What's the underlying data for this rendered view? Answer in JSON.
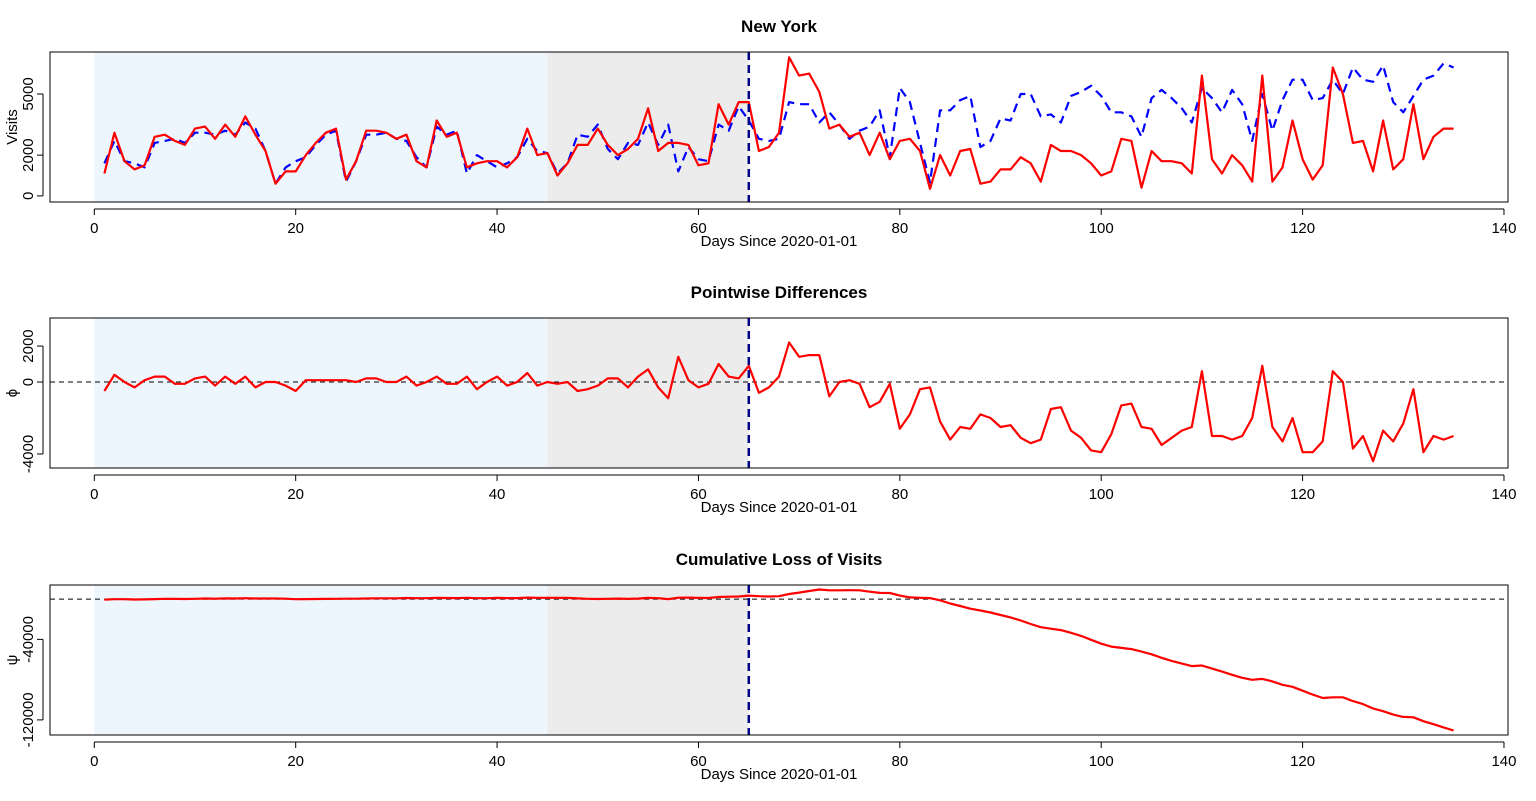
{
  "chart_data": [
    {
      "type": "line",
      "title": "New York",
      "xlabel": "Days Since 2020-01-01",
      "ylabel": "Visits",
      "x": [
        1,
        2,
        3,
        4,
        5,
        6,
        7,
        8,
        9,
        10,
        11,
        12,
        13,
        14,
        15,
        16,
        17,
        18,
        19,
        20,
        21,
        22,
        23,
        24,
        25,
        26,
        27,
        28,
        29,
        30,
        31,
        32,
        33,
        34,
        35,
        36,
        37,
        38,
        39,
        40,
        41,
        42,
        43,
        44,
        45,
        46,
        47,
        48,
        49,
        50,
        51,
        52,
        53,
        54,
        55,
        56,
        57,
        58,
        59,
        60,
        61,
        62,
        63,
        64,
        65,
        66,
        67,
        68,
        69,
        70,
        71,
        72,
        73,
        74,
        75,
        76,
        77,
        78,
        79,
        80,
        81,
        82,
        83,
        84,
        85,
        86,
        87,
        88,
        89,
        90,
        91,
        92,
        93,
        94,
        95,
        96,
        97,
        98,
        99,
        100,
        101,
        102,
        103,
        104,
        105,
        106,
        107,
        108,
        109,
        110,
        111,
        112,
        113,
        114,
        115,
        116,
        117,
        118,
        119,
        120,
        121,
        122,
        123,
        124,
        125,
        126,
        127,
        128,
        129,
        130,
        131,
        132,
        133,
        134,
        135
      ],
      "series": [
        {
          "color": "#0000ff",
          "dashed": true,
          "values": [
            1600,
            2700,
            1700,
            1600,
            1400,
            2600,
            2700,
            2800,
            2600,
            3100,
            3100,
            3000,
            3200,
            3000,
            3600,
            3300,
            2200,
            600,
            1400,
            1700,
            1900,
            2500,
            3000,
            3200,
            700,
            1700,
            3000,
            3000,
            3100,
            2800,
            2700,
            1900,
            1400,
            3400,
            3000,
            3200,
            1100,
            2000,
            1700,
            1400,
            1600,
            1900,
            2800,
            2200,
            2100,
            1100,
            1600,
            3000,
            2900,
            3500,
            2300,
            1800,
            2600,
            2500,
            3600,
            2500,
            3500,
            1200,
            2400,
            1800,
            1700,
            3500,
            3200,
            4400,
            3700,
            2800,
            2700,
            2800,
            4600,
            4500,
            4500,
            3600,
            4100,
            3500,
            2800,
            3200,
            3400,
            4200,
            1900,
            5300,
            4600,
            2600,
            650,
            4200,
            4200,
            4700,
            4900,
            2400,
            2700,
            3800,
            3700,
            5000,
            5000,
            3900,
            4000,
            3600,
            4900,
            5100,
            5400,
            4900,
            4100,
            4100,
            3900,
            2900,
            4800,
            5200,
            4800,
            4300,
            3600,
            5300,
            4800,
            4100,
            5200,
            4500,
            2700,
            5000,
            3200,
            4700,
            5700,
            5700,
            4700,
            4800,
            5700,
            5000,
            6300,
            5700,
            5600,
            6400,
            4600,
            4100,
            4900,
            5700,
            5900,
            6500,
            6300
          ]
        },
        {
          "color": "#ff0000",
          "values": [
            1100,
            3100,
            1700,
            1300,
            1500,
            2900,
            3000,
            2700,
            2500,
            3300,
            3400,
            2800,
            3500,
            2900,
            3900,
            3000,
            2200,
            600,
            1200,
            1200,
            2000,
            2600,
            3100,
            3300,
            800,
            1700,
            3200,
            3200,
            3100,
            2800,
            3000,
            1700,
            1400,
            3700,
            2900,
            3100,
            1400,
            1600,
            1700,
            1700,
            1400,
            1900,
            3300,
            2000,
            2100,
            1000,
            1600,
            2500,
            2500,
            3300,
            2500,
            2000,
            2300,
            2800,
            4300,
            2200,
            2600,
            2600,
            2500,
            1500,
            1600,
            4500,
            3500,
            4600,
            4600,
            2200,
            2400,
            3100,
            6800,
            5900,
            6000,
            5100,
            3300,
            3500,
            2900,
            3100,
            2000,
            3100,
            1800,
            2700,
            2800,
            2200,
            350,
            2000,
            1000,
            2200,
            2300,
            600,
            700,
            1300,
            1300,
            1900,
            1600,
            700,
            2500,
            2200,
            2200,
            2000,
            1600,
            1000,
            1200,
            2800,
            2700,
            400,
            2200,
            1700,
            1700,
            1600,
            1100,
            5900,
            1800,
            1100,
            2000,
            1500,
            700,
            5900,
            700,
            1400,
            3700,
            1800,
            800,
            1500,
            6300,
            5000,
            2600,
            2700,
            1200,
            3700,
            1300,
            1800,
            4500,
            1800,
            2900,
            3300,
            3300
          ]
        }
      ],
      "xlim": [
        -4.4,
        140.4
      ],
      "xticks": [
        0,
        20,
        40,
        60,
        80,
        100,
        120,
        140
      ],
      "ylim": [
        -300,
        7060
      ],
      "yticks": [
        0,
        2000,
        5000
      ],
      "shade": [
        {
          "from": 0,
          "to": 45,
          "color": "#eef6fd"
        },
        {
          "from": 45,
          "to": 65,
          "color": "#ececec"
        }
      ],
      "vline": {
        "at": 65,
        "color": "#00008b"
      }
    },
    {
      "type": "line",
      "title": "Pointwise Differences",
      "xlabel": "Days Since 2020-01-01",
      "ylabel": "ϕ",
      "x": [
        1,
        2,
        3,
        4,
        5,
        6,
        7,
        8,
        9,
        10,
        11,
        12,
        13,
        14,
        15,
        16,
        17,
        18,
        19,
        20,
        21,
        22,
        23,
        24,
        25,
        26,
        27,
        28,
        29,
        30,
        31,
        32,
        33,
        34,
        35,
        36,
        37,
        38,
        39,
        40,
        41,
        42,
        43,
        44,
        45,
        46,
        47,
        48,
        49,
        50,
        51,
        52,
        53,
        54,
        55,
        56,
        57,
        58,
        59,
        60,
        61,
        62,
        63,
        64,
        65,
        66,
        67,
        68,
        69,
        70,
        71,
        72,
        73,
        74,
        75,
        76,
        77,
        78,
        79,
        80,
        81,
        82,
        83,
        84,
        85,
        86,
        87,
        88,
        89,
        90,
        91,
        92,
        93,
        94,
        95,
        96,
        97,
        98,
        99,
        100,
        101,
        102,
        103,
        104,
        105,
        106,
        107,
        108,
        109,
        110,
        111,
        112,
        113,
        114,
        115,
        116,
        117,
        118,
        119,
        120,
        121,
        122,
        123,
        124,
        125,
        126,
        127,
        128,
        129,
        130,
        131,
        132,
        133,
        134,
        135
      ],
      "series": [
        {
          "color": "#ff0000",
          "values": [
            -500,
            400,
            0,
            -300,
            100,
            300,
            300,
            -100,
            -100,
            200,
            300,
            -200,
            300,
            -100,
            300,
            -300,
            0,
            0,
            -200,
            -500,
            100,
            100,
            100,
            100,
            100,
            0,
            200,
            200,
            0,
            0,
            300,
            -200,
            0,
            300,
            -100,
            -100,
            300,
            -400,
            0,
            300,
            -200,
            0,
            500,
            -200,
            0,
            -100,
            0,
            -500,
            -400,
            -200,
            200,
            200,
            -300,
            300,
            700,
            -300,
            -900,
            1400,
            100,
            -300,
            -100,
            1000,
            300,
            200,
            900,
            -600,
            -300,
            300,
            2200,
            1400,
            1500,
            1500,
            -800,
            0,
            100,
            -100,
            -1400,
            -1100,
            -100,
            -2600,
            -1800,
            -400,
            -300,
            -2200,
            -3200,
            -2500,
            -2600,
            -1800,
            -2000,
            -2500,
            -2400,
            -3100,
            -3400,
            -3200,
            -1500,
            -1400,
            -2700,
            -3100,
            -3800,
            -3900,
            -2900,
            -1300,
            -1200,
            -2500,
            -2600,
            -3500,
            -3100,
            -2700,
            -2500,
            600,
            -3000,
            -3000,
            -3200,
            -3000,
            -2000,
            900,
            -2500,
            -3300,
            -2000,
            -3900,
            -3900,
            -3300,
            600,
            0,
            -3700,
            -3000,
            -4400,
            -2700,
            -3300,
            -2300,
            -400,
            -3900,
            -3000,
            -3200,
            -3000
          ]
        }
      ],
      "xlim": [
        -4.4,
        140.4
      ],
      "xticks": [
        0,
        20,
        40,
        60,
        80,
        100,
        120,
        140
      ],
      "ylim": [
        -4780,
        3560
      ],
      "yticks": [
        -4000,
        0,
        2000
      ],
      "shade": [
        {
          "from": 0,
          "to": 45,
          "color": "#eef6fd"
        },
        {
          "from": 45,
          "to": 65,
          "color": "#ececec"
        }
      ],
      "vline": {
        "at": 65,
        "color": "#00008b"
      },
      "hline": 0
    },
    {
      "type": "line",
      "title": "Cumulative Loss of Visits",
      "xlabel": "Days Since 2020-01-01",
      "ylabel": "ψ",
      "x": [
        1,
        2,
        3,
        4,
        5,
        6,
        7,
        8,
        9,
        10,
        11,
        12,
        13,
        14,
        15,
        16,
        17,
        18,
        19,
        20,
        21,
        22,
        23,
        24,
        25,
        26,
        27,
        28,
        29,
        30,
        31,
        32,
        33,
        34,
        35,
        36,
        37,
        38,
        39,
        40,
        41,
        42,
        43,
        44,
        45,
        46,
        47,
        48,
        49,
        50,
        51,
        52,
        53,
        54,
        55,
        56,
        57,
        58,
        59,
        60,
        61,
        62,
        63,
        64,
        65,
        66,
        67,
        68,
        69,
        70,
        71,
        72,
        73,
        74,
        75,
        76,
        77,
        78,
        79,
        80,
        81,
        82,
        83,
        84,
        85,
        86,
        87,
        88,
        89,
        90,
        91,
        92,
        93,
        94,
        95,
        96,
        97,
        98,
        99,
        100,
        101,
        102,
        103,
        104,
        105,
        106,
        107,
        108,
        109,
        110,
        111,
        112,
        113,
        114,
        115,
        116,
        117,
        118,
        119,
        120,
        121,
        122,
        123,
        124,
        125,
        126,
        127,
        128,
        129,
        130,
        131,
        132,
        133,
        134,
        135
      ],
      "series": [
        {
          "color": "#ff0000",
          "values": [
            -500,
            -100,
            -100,
            -400,
            -300,
            0,
            300,
            200,
            100,
            300,
            600,
            400,
            700,
            600,
            900,
            600,
            600,
            600,
            400,
            -100,
            0,
            100,
            200,
            300,
            400,
            400,
            600,
            800,
            800,
            800,
            1100,
            900,
            900,
            1200,
            1100,
            1000,
            1300,
            900,
            900,
            1200,
            1000,
            1000,
            1500,
            1300,
            1300,
            1200,
            1200,
            700,
            300,
            100,
            300,
            500,
            200,
            500,
            1200,
            900,
            0,
            1400,
            1500,
            1200,
            1100,
            2100,
            2400,
            2600,
            3500,
            2900,
            2600,
            2900,
            5100,
            6500,
            8000,
            9500,
            8700,
            8700,
            8800,
            8700,
            7300,
            6200,
            6100,
            3500,
            1700,
            1300,
            1000,
            -1200,
            -4400,
            -6900,
            -9500,
            -11300,
            -13300,
            -15800,
            -18200,
            -21300,
            -24700,
            -27900,
            -29400,
            -30800,
            -33500,
            -36600,
            -40400,
            -44300,
            -47200,
            -48500,
            -49700,
            -52200,
            -54800,
            -58300,
            -61400,
            -64100,
            -66600,
            -66000,
            -69000,
            -72000,
            -75200,
            -78200,
            -80200,
            -79300,
            -81800,
            -85100,
            -87100,
            -91000,
            -94900,
            -98200,
            -97600,
            -97600,
            -101300,
            -104300,
            -108700,
            -111400,
            -114700,
            -117000,
            -117400,
            -121300,
            -124300,
            -127500,
            -130500
          ]
        }
      ],
      "xlim": [
        -4.4,
        140.4
      ],
      "xticks": [
        0,
        20,
        40,
        60,
        80,
        100,
        120,
        140
      ],
      "ylim": [
        -135000,
        14000
      ],
      "yticks": [
        -120000,
        -40000
      ],
      "shade": [
        {
          "from": 0,
          "to": 45,
          "color": "#eef6fd"
        },
        {
          "from": 45,
          "to": 65,
          "color": "#ececec"
        }
      ],
      "vline": {
        "at": 65,
        "color": "#00008b"
      },
      "hline": 0
    }
  ]
}
